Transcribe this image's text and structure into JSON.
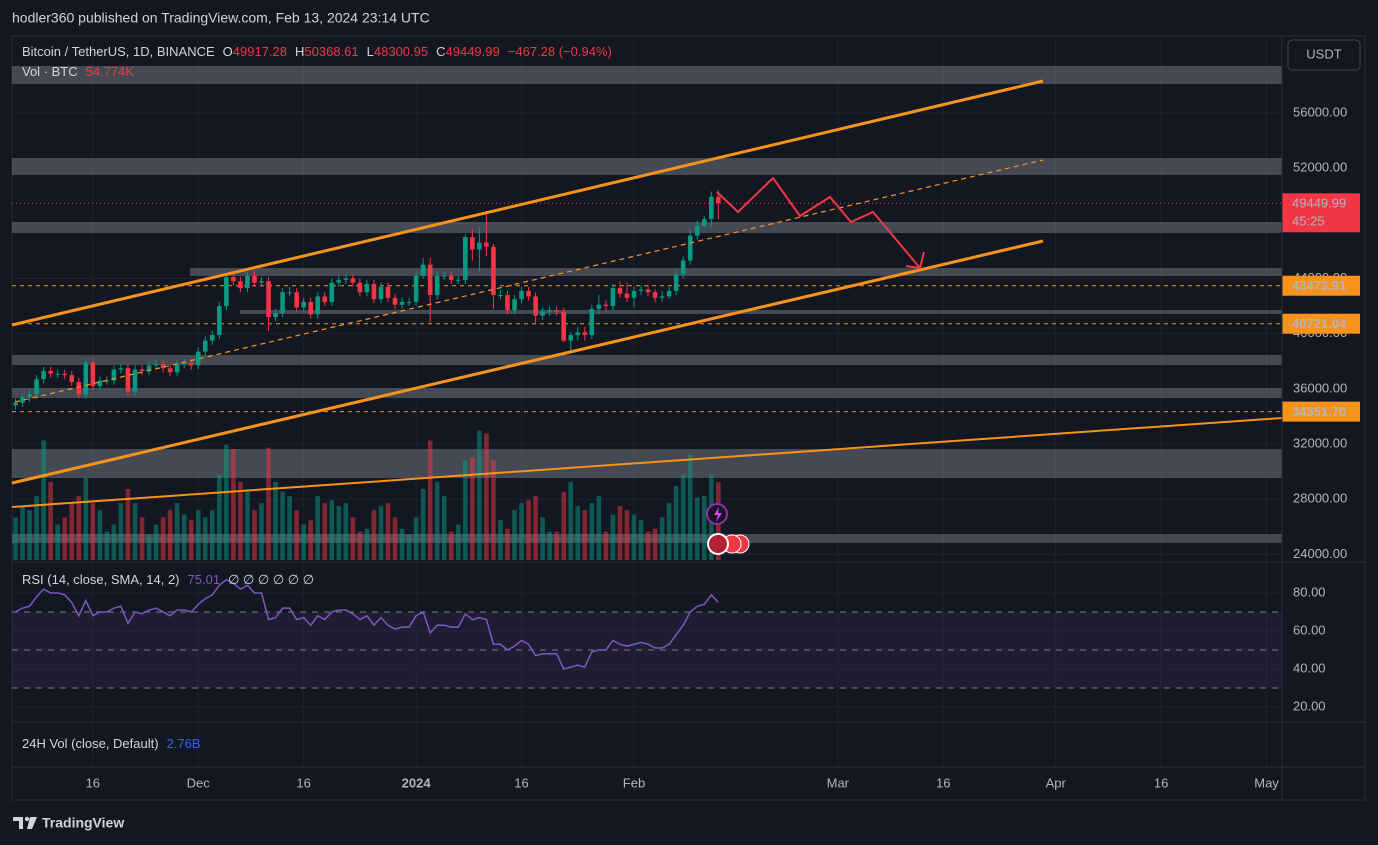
{
  "header": "hodler360 published on TradingView.com, Feb 13, 2024 23:14 UTC",
  "footer": "TradingView",
  "currency_button": "USDT",
  "chart_data": {
    "type": "candlestick",
    "legend": {
      "symbol": "Bitcoin / TetherUS, 1D, BINANCE",
      "o": "O",
      "h": "H",
      "l": "L",
      "c": "C",
      "change": "−467.28 (−0.94%)"
    },
    "open": [
      34800,
      35000,
      35400,
      35600,
      36700,
      37300,
      37100,
      37100,
      37000,
      36500,
      35600,
      37900,
      36200,
      36600,
      36600,
      37400,
      37500,
      35800,
      37400,
      37300,
      37700,
      37800,
      37500,
      37200,
      37800,
      37900,
      37700,
      38700,
      39500,
      39900,
      42000,
      44100,
      43800,
      43300,
      44200,
      43700,
      43800,
      41200,
      41500,
      43000,
      43000,
      41900,
      42300,
      41400,
      42700,
      42300,
      43700,
      43900,
      44000,
      43700,
      43000,
      43600,
      42500,
      43400,
      42600,
      42100,
      42300,
      42300,
      44200,
      45000,
      42800,
      44200,
      44200,
      43900,
      43900,
      47000,
      46100,
      46600,
      46300,
      42800,
      42800,
      41700,
      42500,
      43100,
      42700,
      41300,
      41600,
      41700,
      41600,
      39500,
      39900,
      40100,
      39900,
      41800,
      42100,
      42000,
      43300,
      42900,
      42600,
      43100,
      43200,
      43000,
      42600,
      42700,
      43100,
      44300,
      45300,
      47100,
      47800,
      48300,
      49917.28
    ],
    "high": [
      35300,
      35700,
      35900,
      37000,
      37600,
      37600,
      37400,
      37400,
      37300,
      36800,
      38200,
      38200,
      36900,
      36900,
      37700,
      37800,
      37800,
      37700,
      37700,
      38000,
      38100,
      38100,
      37800,
      38100,
      38200,
      38200,
      39000,
      39800,
      40200,
      42300,
      44400,
      44400,
      44100,
      44500,
      44500,
      44100,
      44100,
      41800,
      43300,
      43400,
      43300,
      42600,
      42600,
      43000,
      43000,
      44000,
      44200,
      44300,
      44300,
      44000,
      43900,
      43900,
      43700,
      43700,
      42900,
      42600,
      42600,
      44500,
      45500,
      45500,
      44500,
      44500,
      44500,
      44200,
      47200,
      47600,
      47700,
      48900,
      46500,
      43200,
      43100,
      42800,
      43400,
      43400,
      43000,
      41900,
      42000,
      42000,
      41900,
      40100,
      40500,
      40500,
      42100,
      42800,
      42400,
      43600,
      43800,
      43700,
      43400,
      43500,
      43500,
      43200,
      43100,
      43400,
      44600,
      45600,
      47600,
      48200,
      48500,
      50300,
      50368.61
    ],
    "low": [
      34500,
      34700,
      35100,
      35300,
      36400,
      36800,
      36800,
      36700,
      36200,
      35300,
      35300,
      35900,
      35900,
      36300,
      36300,
      37100,
      35500,
      35500,
      37000,
      37000,
      37400,
      37200,
      36900,
      36900,
      37500,
      37400,
      37400,
      38400,
      39200,
      39600,
      41700,
      43500,
      43000,
      43000,
      43400,
      43400,
      40200,
      40900,
      41200,
      42700,
      41600,
      41600,
      41100,
      41100,
      42000,
      42000,
      43400,
      43600,
      43400,
      42700,
      42700,
      42200,
      42200,
      42300,
      41800,
      41800,
      42000,
      42000,
      44000,
      40800,
      42500,
      43900,
      43600,
      43600,
      43600,
      45300,
      44500,
      45600,
      41800,
      42500,
      41400,
      41400,
      42200,
      42400,
      40700,
      41000,
      41300,
      41300,
      39400,
      38600,
      39500,
      39500,
      39600,
      41400,
      41700,
      41700,
      42600,
      42300,
      41900,
      42800,
      42700,
      42300,
      42300,
      42500,
      42800,
      44000,
      45000,
      46800,
      47700,
      47700,
      48300.95
    ],
    "close": [
      35000,
      35400,
      35600,
      36700,
      37300,
      37100,
      37100,
      37000,
      36500,
      35600,
      37900,
      36200,
      36600,
      36600,
      37400,
      37500,
      35800,
      37400,
      37300,
      37700,
      37800,
      37500,
      37200,
      37800,
      37900,
      37700,
      38700,
      39500,
      39900,
      42000,
      44100,
      43800,
      43300,
      44200,
      43700,
      43800,
      41200,
      41500,
      43000,
      43000,
      41900,
      42300,
      41400,
      42700,
      42300,
      43700,
      43900,
      44000,
      43700,
      43000,
      43600,
      42500,
      43400,
      42600,
      42100,
      42300,
      42300,
      44200,
      45000,
      42800,
      44200,
      44200,
      43900,
      43900,
      47000,
      46100,
      46600,
      46300,
      42800,
      42800,
      41700,
      42500,
      43100,
      42700,
      41300,
      41600,
      41700,
      41600,
      39500,
      39900,
      40100,
      39900,
      41800,
      42100,
      42000,
      43300,
      42900,
      42600,
      43100,
      43200,
      43000,
      42600,
      42700,
      43100,
      44300,
      45300,
      47100,
      47800,
      48300,
      49917.28,
      49449.99
    ],
    "up_color": "#089981",
    "down_color": "#f23645",
    "ylim": [
      23600,
      61136
    ],
    "yticks": [
      {
        "value": 24000,
        "label": "24000.00"
      },
      {
        "value": 28000,
        "label": "28000.00"
      },
      {
        "value": 32000,
        "label": "32000.00"
      },
      {
        "value": 36000,
        "label": "36000.00"
      },
      {
        "value": 40000,
        "label": "40000.00"
      },
      {
        "value": 44000,
        "label": "44000.00"
      },
      {
        "value": 48000,
        "label": "48000.00"
      },
      {
        "value": 52000,
        "label": "52000.00"
      },
      {
        "value": 56000,
        "label": "56000.00"
      }
    ],
    "xlim": [
      -0.5,
      180.2
    ],
    "xticks": [
      {
        "value": 11,
        "label": "16"
      },
      {
        "value": 26,
        "label": "Dec"
      },
      {
        "value": 41,
        "label": "16"
      },
      {
        "value": 57,
        "label": "2024"
      },
      {
        "value": 72,
        "label": "16"
      },
      {
        "value": 88,
        "label": "Feb"
      },
      {
        "value": 117,
        "label": "Mar"
      },
      {
        "value": 132,
        "label": "16"
      },
      {
        "value": 148,
        "label": "Apr"
      },
      {
        "value": 163,
        "label": "16"
      },
      {
        "value": 178,
        "label": "May"
      }
    ],
    "grid": true,
    "last_price_countdown": "45:25",
    "price_lines": [
      {
        "value": 43473.91,
        "label": "43473.91"
      },
      {
        "value": 40721.04,
        "label": "40721.04"
      },
      {
        "value": 34351.7,
        "label": "34351.70"
      }
    ],
    "volume": {
      "label": "Vol · BTC",
      "value_label": "54.774K",
      "ylim": [
        0,
        180
      ],
      "values": [
        30,
        38,
        35,
        45,
        84,
        55,
        25,
        30,
        40,
        45,
        58,
        40,
        35,
        20,
        25,
        40,
        50,
        40,
        30,
        18,
        25,
        30,
        35,
        40,
        32,
        28,
        35,
        30,
        35,
        60,
        81,
        78,
        55,
        48,
        35,
        40,
        79,
        55,
        48,
        45,
        35,
        25,
        28,
        45,
        40,
        42,
        38,
        40,
        30,
        20,
        22,
        35,
        38,
        40,
        30,
        22,
        18,
        30,
        50,
        84,
        55,
        45,
        20,
        25,
        70,
        72,
        91,
        89,
        70,
        28,
        22,
        35,
        40,
        42,
        45,
        30,
        20,
        20,
        48,
        55,
        38,
        35,
        40,
        45,
        20,
        32,
        38,
        35,
        32,
        28,
        20,
        22,
        30,
        40,
        52,
        60,
        74,
        44,
        45,
        60,
        54.774
      ]
    },
    "rsi": {
      "label": "RSI (14, close, SMA, 14, 2)",
      "extra": "∅ ∅ ∅ ∅ ∅ ∅",
      "color": "#7e57c2",
      "ylim": [
        12.1,
        94.7
      ],
      "yticks": [
        {
          "value": 20,
          "label": "20.00"
        },
        {
          "value": 40,
          "label": "40.00"
        },
        {
          "value": 60,
          "label": "60.00"
        },
        {
          "value": 80,
          "label": "80.00"
        }
      ],
      "levels": [
        70,
        50,
        30
      ],
      "values": [
        70,
        72,
        73,
        78,
        82,
        80,
        80,
        79,
        75,
        68,
        76,
        68,
        70,
        70,
        72,
        73,
        64,
        70,
        69,
        71,
        72,
        70,
        68,
        71,
        71,
        70,
        74,
        77,
        79,
        84,
        87,
        85,
        82,
        84,
        80,
        80,
        66,
        67,
        72,
        72,
        66,
        67,
        63,
        68,
        66,
        70,
        71,
        71,
        69,
        66,
        68,
        63,
        67,
        63,
        61,
        62,
        62,
        68,
        70,
        59,
        63,
        63,
        62,
        62,
        69,
        66,
        67,
        66,
        53,
        53,
        50,
        52,
        55,
        53,
        47,
        48,
        48,
        48,
        40,
        41,
        42,
        41,
        49,
        50,
        50,
        55,
        53,
        52,
        53,
        54,
        53,
        51,
        51,
        53,
        58,
        63,
        70,
        73,
        74,
        79,
        75.01
      ]
    },
    "vol24h": {
      "label": "24H Vol (close, Default)",
      "value_label": "2.76B"
    }
  }
}
